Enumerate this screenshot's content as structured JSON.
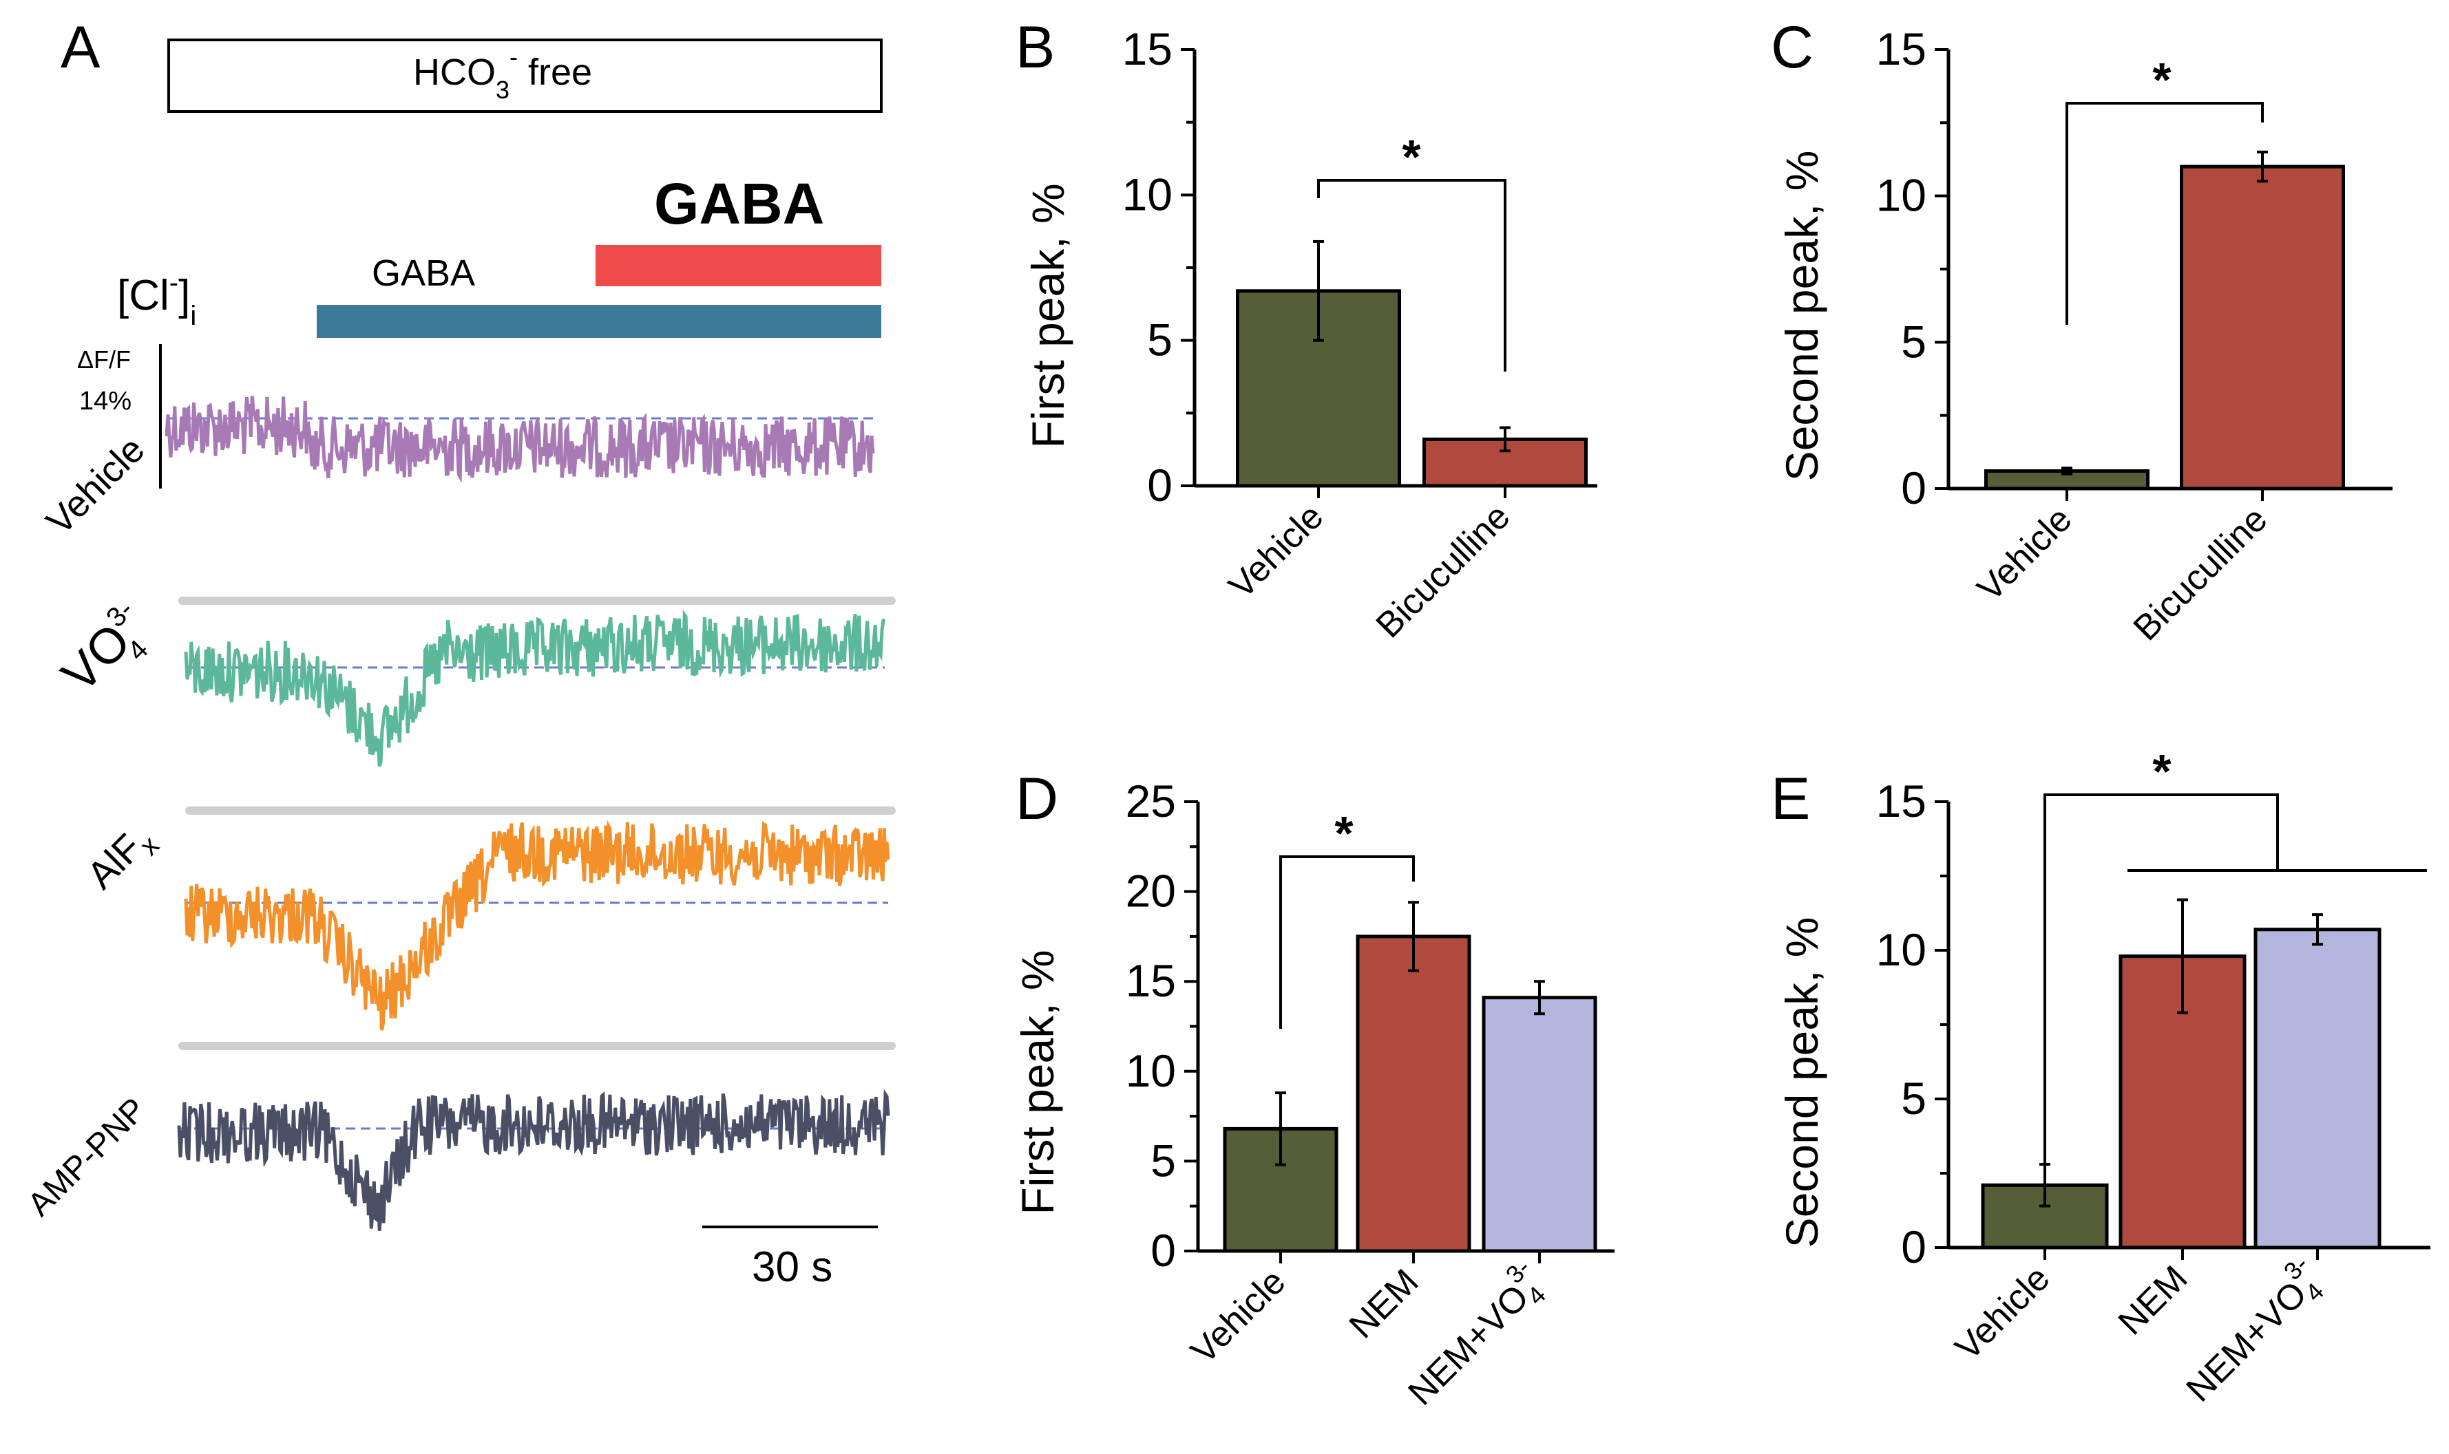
{
  "figure": {
    "panel_a": {
      "letter": "A",
      "condition_label": "HCO",
      "condition_sub": "3",
      "condition_sup": "-",
      "condition_suffix": " free",
      "gaba_small_label": "GABA",
      "gaba_big_label": "GABA",
      "cl_label": "[Cl",
      "cl_sup": "-",
      "cl_close": "]",
      "cl_sub": "i",
      "scale_label_top": "ΔF/F",
      "scale_label_bottom": "14%",
      "time_scale_label": "30 s",
      "gaba_small_bar_color": "#3d7a99",
      "gaba_big_bar_color": "#ef4b4b",
      "baseline_color": "#6a7ad0",
      "traces": [
        {
          "label": "Vehicle",
          "label_sup": "",
          "label_sub": "",
          "color": "#a87ab5"
        },
        {
          "label": "VO",
          "label_sup": "3-",
          "label_sub": "4",
          "color": "#5cb89a"
        },
        {
          "label": "AlF",
          "label_sup": "",
          "label_sub": "x",
          "color": "#f3902a"
        },
        {
          "label": "AMP-PNP",
          "label_sup": "",
          "label_sub": "",
          "color": "#4a4f66"
        }
      ]
    }
  },
  "chart_data": [
    {
      "panel": "B",
      "type": "bar",
      "ylabel": "First peak, %",
      "ylim": [
        0,
        15
      ],
      "yticks": [
        "0",
        "5",
        "10",
        "15"
      ],
      "categories": [
        "Vehicle",
        "Bicuculline"
      ],
      "values": [
        6.7,
        1.6
      ],
      "errors": [
        1.7,
        0.4
      ],
      "colors": [
        "#565e38",
        "#b04a3f"
      ],
      "significance": "*"
    },
    {
      "panel": "C",
      "type": "bar",
      "ylabel": "Second peak, %",
      "ylim": [
        0,
        15
      ],
      "yticks": [
        "0",
        "5",
        "10",
        "15"
      ],
      "categories": [
        "Vehicle",
        "Bicuculline"
      ],
      "values": [
        0.6,
        11.0
      ],
      "errors": [
        0.1,
        0.5
      ],
      "colors": [
        "#565e38",
        "#b04a3f"
      ],
      "significance": "*"
    },
    {
      "panel": "D",
      "type": "bar",
      "ylabel": "First peak, %",
      "ylim": [
        0,
        25
      ],
      "yticks": [
        "0",
        "5",
        "10",
        "15",
        "20",
        "25"
      ],
      "categories": [
        "Vehicle",
        "NEM",
        "NEM+VO"
      ],
      "category_sup": [
        "",
        "",
        "3-"
      ],
      "category_sub": [
        "",
        "",
        "4"
      ],
      "values": [
        6.8,
        17.5,
        14.1
      ],
      "errors": [
        2.0,
        1.9,
        0.9
      ],
      "colors": [
        "#565e38",
        "#b04a3f",
        "#b3b5dc"
      ],
      "significance": "*"
    },
    {
      "panel": "E",
      "type": "bar",
      "ylabel": "Second peak, %",
      "ylim": [
        0,
        15
      ],
      "yticks": [
        "0",
        "5",
        "10",
        "15"
      ],
      "categories": [
        "Vehicle",
        "NEM",
        "NEM+VO"
      ],
      "category_sup": [
        "",
        "",
        "3-"
      ],
      "category_sub": [
        "",
        "",
        "4"
      ],
      "values": [
        2.1,
        9.8,
        10.7
      ],
      "errors": [
        0.7,
        1.9,
        0.5
      ],
      "colors": [
        "#565e38",
        "#b04a3f",
        "#b3b5dc"
      ],
      "significance": "*"
    }
  ]
}
